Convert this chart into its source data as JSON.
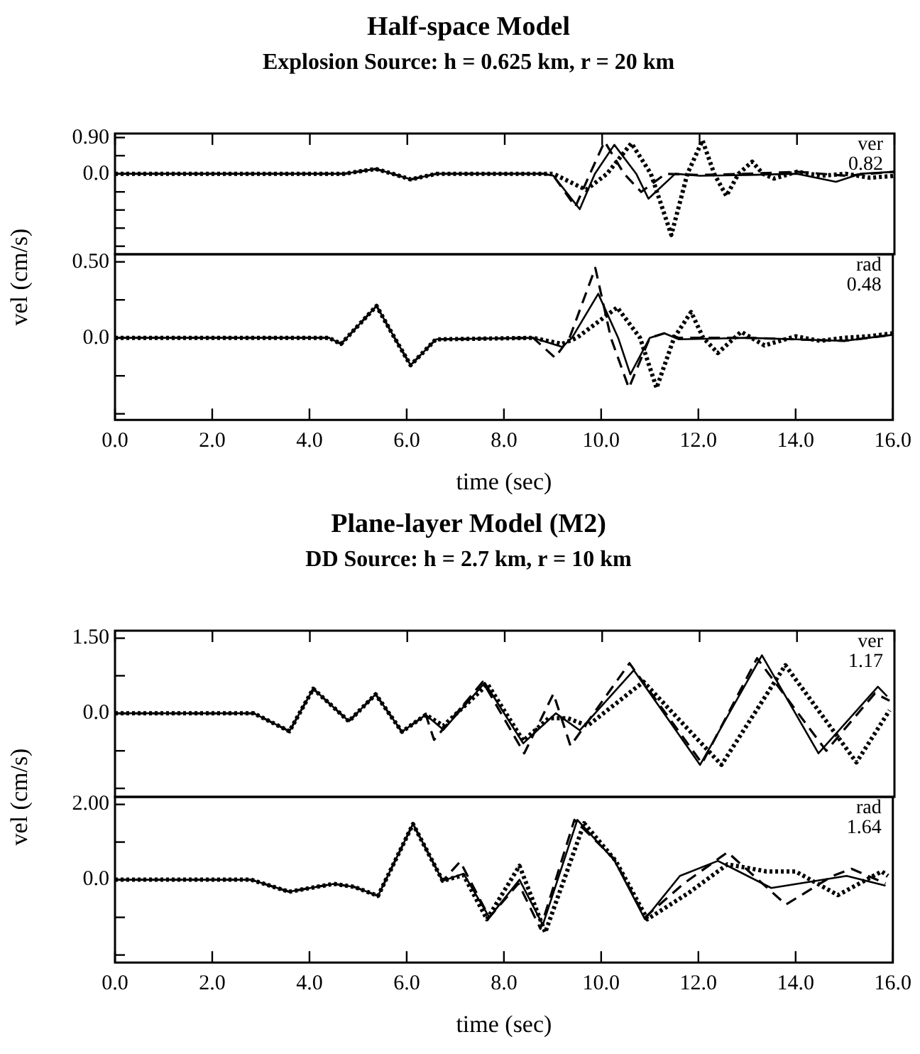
{
  "chart_data": [
    {
      "type": "line",
      "title": "Half-space Model",
      "subtitle": "Explosion Source: h = 0.625 km, r = 20 km",
      "ylabel": "vel (cm/s)",
      "xlim": [
        0,
        16
      ],
      "xticks": [
        {
          "value": 0,
          "label": null
        },
        {
          "value": 2,
          "label": null
        },
        {
          "value": 4,
          "label": null
        },
        {
          "value": 6,
          "label": null
        },
        {
          "value": 8,
          "label": null
        },
        {
          "value": 10,
          "label": null
        },
        {
          "value": 12,
          "label": null
        },
        {
          "value": 14,
          "label": null
        },
        {
          "value": 16,
          "label": null
        }
      ],
      "ylim": [
        -2.0,
        1.0
      ],
      "yticks": [
        {
          "value": 0.9,
          "label": "0.90"
        },
        {
          "value": 0.45,
          "label": null
        },
        {
          "value": 0,
          "label": "0.0"
        },
        {
          "value": -0.45,
          "label": null
        },
        {
          "value": -0.9,
          "label": null
        },
        {
          "value": -1.35,
          "label": null
        },
        {
          "value": -1.8,
          "label": null
        }
      ],
      "tick_labels": "y",
      "grid": false,
      "legend": false,
      "marker": "none",
      "annotations": [
        "ver",
        "0.82"
      ],
      "series": [
        {
          "color": "#000000",
          "line_style": "solid",
          "x": [
            0,
            4.7,
            5.35,
            5.7,
            6.07,
            6.6,
            8.8,
            9.0,
            9.54,
            9.85,
            10.25,
            10.7,
            10.95,
            11.5,
            12,
            13,
            14,
            14.8,
            15.3,
            16
          ],
          "values": [
            0,
            0,
            0.12,
            0,
            -0.14,
            0,
            0,
            -0.05,
            -0.88,
            0,
            0.72,
            0,
            -0.62,
            0,
            -0.05,
            -0.03,
            0,
            -0.2,
            0,
            0.05
          ]
        },
        {
          "color": "#000000",
          "line_style": "dashed",
          "x": [
            0,
            4.7,
            5.35,
            5.7,
            6.07,
            6.6,
            8.8,
            9.0,
            9.45,
            9.75,
            10.05,
            10.45,
            10.8,
            11.3,
            12,
            13,
            14,
            15,
            16
          ],
          "values": [
            0,
            0,
            0.12,
            0,
            -0.14,
            0,
            0,
            -0.05,
            -0.82,
            0,
            0.8,
            0,
            -0.45,
            0,
            -0.03,
            0,
            0.05,
            -0.05,
            0.05
          ]
        },
        {
          "color": "#000000",
          "line_style": "dotted",
          "x": [
            0,
            4.7,
            5.35,
            5.7,
            6.07,
            6.6,
            8.8,
            9.0,
            9.67,
            10.1,
            10.6,
            11.0,
            11.42,
            11.75,
            12.06,
            12.3,
            12.55,
            12.8,
            13.08,
            13.3,
            13.53,
            14,
            14.5,
            15,
            15.5,
            16
          ],
          "values": [
            0,
            0,
            0.12,
            0,
            -0.14,
            0,
            0,
            0,
            -0.4,
            0,
            0.76,
            0,
            -1.52,
            0,
            0.83,
            0,
            -0.55,
            0,
            0.3,
            0,
            -0.12,
            0.05,
            -0.05,
            0,
            -0.1,
            -0.05
          ]
        }
      ]
    },
    {
      "type": "line",
      "xlabel": "time (sec)",
      "xlim": [
        0,
        16
      ],
      "xticks": [
        {
          "value": 0,
          "label": "0.0"
        },
        {
          "value": 2,
          "label": "2.0"
        },
        {
          "value": 4,
          "label": "4.0"
        },
        {
          "value": 6,
          "label": "6.0"
        },
        {
          "value": 8,
          "label": "8.0"
        },
        {
          "value": 10,
          "label": "10.0"
        },
        {
          "value": 12,
          "label": "12.0"
        },
        {
          "value": 14,
          "label": "14.0"
        },
        {
          "value": 16,
          "label": "16.0"
        }
      ],
      "ylim": [
        -0.54,
        0.55
      ],
      "yticks": [
        {
          "value": 0.5,
          "label": "0.50"
        },
        {
          "value": 0.25,
          "label": null
        },
        {
          "value": 0,
          "label": "0.0"
        },
        {
          "value": -0.25,
          "label": null
        },
        {
          "value": -0.5,
          "label": null
        }
      ],
      "grid": false,
      "legend": false,
      "marker": "none",
      "annotations": [
        "rad",
        "0.48"
      ],
      "series": [
        {
          "color": "#000000",
          "line_style": "solid",
          "x": [
            0,
            4.4,
            4.65,
            5.38,
            5.75,
            6.08,
            6.6,
            8.6,
            9.2,
            9.4,
            9.94,
            10.35,
            10.6,
            11.0,
            11.3,
            11.6,
            13,
            14,
            15,
            16
          ],
          "values": [
            0,
            0,
            -0.04,
            0.21,
            0,
            -0.18,
            -0.01,
            0,
            -0.06,
            0,
            0.29,
            0,
            -0.24,
            0,
            0.03,
            -0.01,
            0,
            -0.01,
            -0.02,
            0.02
          ]
        },
        {
          "color": "#000000",
          "line_style": "dashed",
          "x": [
            0,
            4.4,
            4.65,
            5.38,
            5.75,
            6.08,
            6.6,
            8.6,
            9.05,
            9.35,
            9.88,
            10.2,
            10.57,
            11.0,
            11.3,
            11.6,
            13,
            14,
            15,
            16
          ],
          "values": [
            0,
            0,
            -0.04,
            0.21,
            0,
            -0.18,
            -0.01,
            0,
            -0.13,
            0,
            0.46,
            0,
            -0.33,
            0,
            0.03,
            0,
            0,
            -0.01,
            -0.02,
            0.02
          ]
        },
        {
          "color": "#000000",
          "line_style": "dotted",
          "x": [
            0,
            4.4,
            4.65,
            5.38,
            5.75,
            6.08,
            6.6,
            8.6,
            9.2,
            9.5,
            10.33,
            10.8,
            11.14,
            11.5,
            11.85,
            12.1,
            12.4,
            12.88,
            13.36,
            14,
            14.5,
            15,
            15.5,
            16
          ],
          "values": [
            0,
            0,
            -0.04,
            0.21,
            0,
            -0.18,
            -0.01,
            0,
            -0.04,
            0,
            0.2,
            0,
            -0.33,
            0,
            0.17,
            0,
            -0.1,
            0.04,
            -0.05,
            0.01,
            -0.02,
            0,
            0.01,
            0.03
          ]
        }
      ]
    },
    {
      "type": "line",
      "title": "Plane-layer Model (M2)",
      "subtitle": "DD Source: h = 2.7 km, r = 10 km",
      "ylabel": "vel (cm/s)",
      "xlim": [
        0,
        16
      ],
      "xticks": [
        {
          "value": 0,
          "label": null
        },
        {
          "value": 2,
          "label": null
        },
        {
          "value": 4,
          "label": null
        },
        {
          "value": 6,
          "label": null
        },
        {
          "value": 8,
          "label": null
        },
        {
          "value": 10,
          "label": null
        },
        {
          "value": 12,
          "label": null
        },
        {
          "value": 14,
          "label": null
        },
        {
          "value": 16,
          "label": null
        }
      ],
      "ylim": [
        -1.67,
        1.65
      ],
      "yticks": [
        {
          "value": 1.5,
          "label": "1.50"
        },
        {
          "value": 0.75,
          "label": null
        },
        {
          "value": 0,
          "label": "0.0"
        },
        {
          "value": -0.75,
          "label": null
        },
        {
          "value": -1.5,
          "label": null
        }
      ],
      "tick_labels": "y",
      "grid": false,
      "legend": false,
      "marker": "none",
      "annotations": [
        "ver",
        "1.17"
      ],
      "series": [
        {
          "color": "#000000",
          "line_style": "solid",
          "x": [
            0,
            2.85,
            3.58,
            4.07,
            4.8,
            5.35,
            5.89,
            6.38,
            6.74,
            7.59,
            8.38,
            9.05,
            9.54,
            10.65,
            12.01,
            13.28,
            14.44,
            15.66,
            15.85
          ],
          "values": [
            0,
            0,
            -0.36,
            0.49,
            -0.16,
            0.38,
            -0.37,
            -0.03,
            -0.33,
            0.61,
            -0.6,
            0,
            -0.34,
            0.86,
            -1.03,
            1.16,
            -0.8,
            0.53,
            0.34
          ]
        },
        {
          "color": "#000000",
          "line_style": "dashed",
          "x": [
            0,
            2.85,
            3.58,
            4.07,
            4.8,
            5.35,
            5.89,
            6.38,
            6.55,
            7.55,
            8.4,
            9.0,
            9.35,
            10.56,
            12.05,
            13.18,
            14.6,
            15.6,
            15.9
          ],
          "values": [
            0,
            0,
            -0.36,
            0.49,
            -0.16,
            0.38,
            -0.37,
            -0.03,
            -0.53,
            0.63,
            -0.8,
            0.39,
            -0.65,
            1.0,
            -1.0,
            1.1,
            -0.75,
            0.4,
            0.25
          ]
        },
        {
          "color": "#000000",
          "line_style": "dotted",
          "x": [
            0,
            2.85,
            3.58,
            4.07,
            4.8,
            5.35,
            5.89,
            6.38,
            6.74,
            7.65,
            8.38,
            8.9,
            9.3,
            9.7,
            10.85,
            12.45,
            13.76,
            15.22,
            15.9
          ],
          "values": [
            0,
            0,
            -0.36,
            0.49,
            -0.16,
            0.38,
            -0.37,
            -0.03,
            -0.25,
            0.58,
            -0.55,
            -0.1,
            -0.1,
            -0.25,
            0.63,
            -1.03,
            0.96,
            -0.98,
            0.06
          ]
        }
      ]
    },
    {
      "type": "line",
      "xlabel": "time (sec)",
      "xlim": [
        0,
        16
      ],
      "xticks": [
        {
          "value": 0,
          "label": "0.0"
        },
        {
          "value": 2,
          "label": "2.0"
        },
        {
          "value": 4,
          "label": "4.0"
        },
        {
          "value": 6,
          "label": "6.0"
        },
        {
          "value": 8,
          "label": "8.0"
        },
        {
          "value": 10,
          "label": "10.0"
        },
        {
          "value": 12,
          "label": "12.0"
        },
        {
          "value": 14,
          "label": "14.0"
        },
        {
          "value": 16,
          "label": "16.0"
        }
      ],
      "ylim": [
        -2.2,
        2.2
      ],
      "yticks": [
        {
          "value": 2,
          "label": "2.00"
        },
        {
          "value": 1,
          "label": null
        },
        {
          "value": 0,
          "label": "0.0"
        },
        {
          "value": -1,
          "label": null
        },
        {
          "value": -2,
          "label": null
        }
      ],
      "grid": false,
      "legend": false,
      "marker": "none",
      "annotations": [
        "rad",
        "1.64"
      ],
      "series": [
        {
          "color": "#000000",
          "line_style": "solid",
          "x": [
            0,
            2.8,
            3.58,
            4.5,
            4.92,
            5.41,
            6.13,
            6.74,
            7.17,
            7.7,
            8.32,
            8.8,
            9.51,
            10.27,
            10.9,
            11.62,
            12.4,
            13.5,
            15.05,
            15.85
          ],
          "values": [
            0,
            0,
            -0.32,
            -0.11,
            -0.19,
            -0.43,
            1.48,
            -0.03,
            0.16,
            -1.0,
            0,
            -1.2,
            1.59,
            0.52,
            -1.05,
            0.1,
            0.5,
            -0.22,
            0.1,
            -0.16
          ]
        },
        {
          "color": "#000000",
          "line_style": "dashed",
          "x": [
            0,
            2.8,
            3.58,
            4.5,
            4.92,
            5.41,
            6.13,
            6.74,
            7.1,
            7.7,
            8.3,
            8.75,
            9.45,
            10.27,
            10.9,
            11.7,
            12.6,
            13.8,
            14.76,
            15.15,
            15.85
          ],
          "values": [
            0,
            0,
            -0.32,
            -0.11,
            -0.19,
            -0.43,
            1.48,
            -0.03,
            0.48,
            -1.0,
            -0.1,
            -1.3,
            1.59,
            0.55,
            -1.0,
            -0.1,
            0.73,
            -0.66,
            0.1,
            0.29,
            -0.1
          ]
        },
        {
          "color": "#000000",
          "line_style": "dotted",
          "x": [
            0,
            2.8,
            3.58,
            4.5,
            4.92,
            5.41,
            6.13,
            6.74,
            7.17,
            7.65,
            8.32,
            8.85,
            9.65,
            10.3,
            10.95,
            11.8,
            12.6,
            13.4,
            14.0,
            14.87,
            15.77,
            15.9
          ],
          "values": [
            0,
            0,
            -0.32,
            -0.11,
            -0.19,
            -0.43,
            1.48,
            -0.03,
            0.12,
            -1.05,
            0.37,
            -1.4,
            1.5,
            0.5,
            -1.05,
            -0.35,
            0.41,
            0.22,
            0.22,
            -0.41,
            0.22,
            0.1
          ]
        }
      ]
    }
  ]
}
